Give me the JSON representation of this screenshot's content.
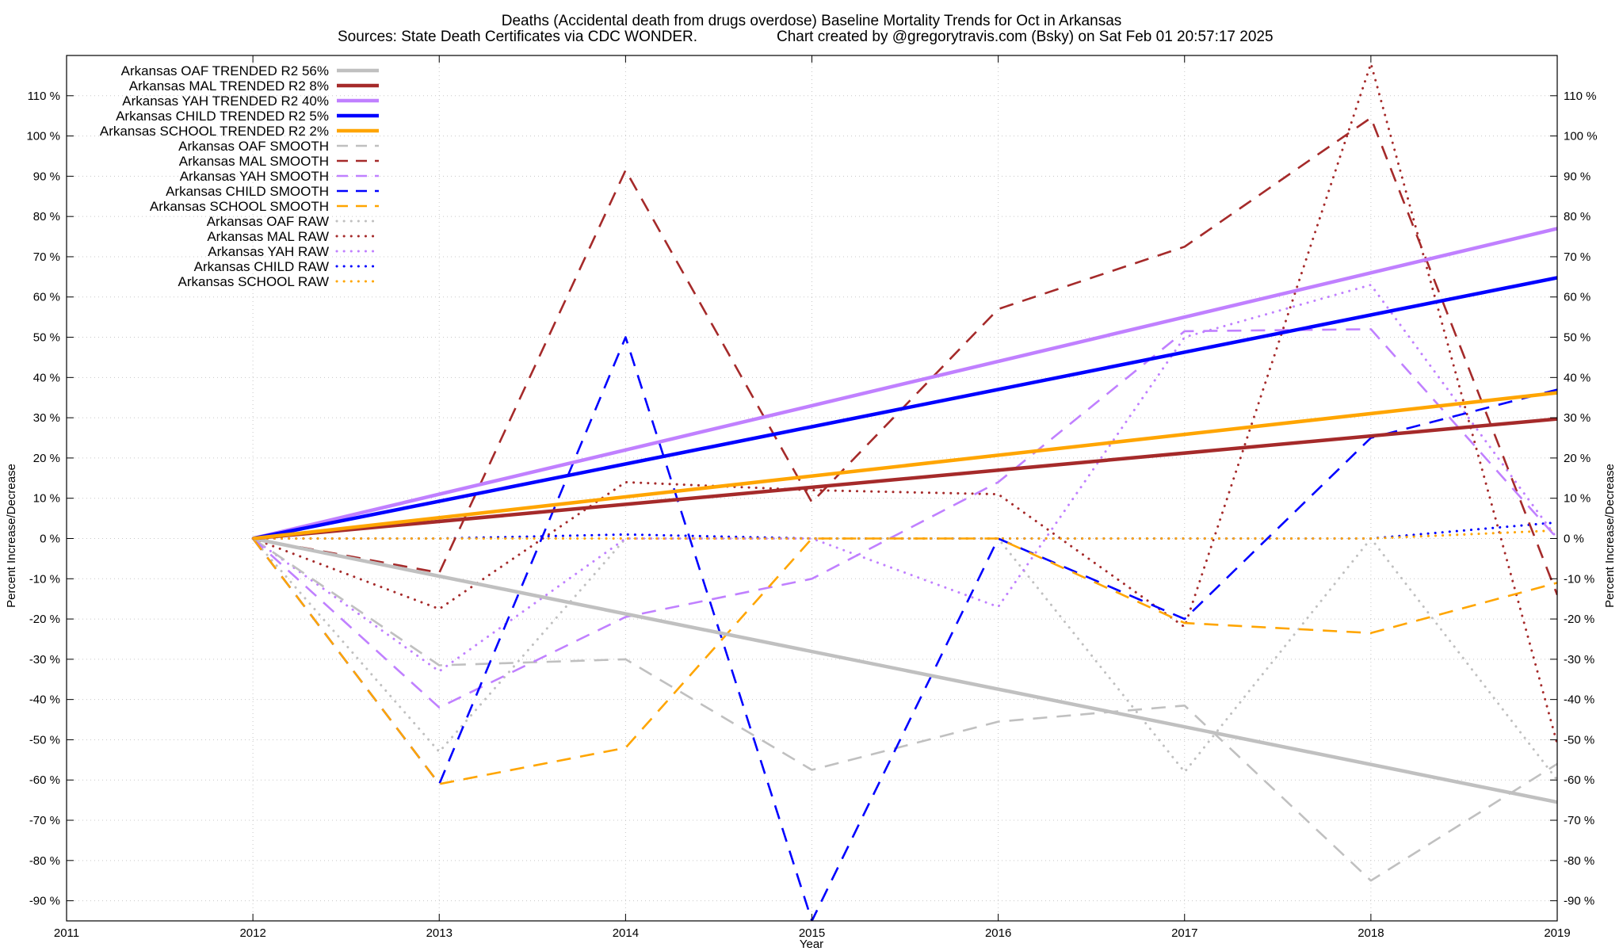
{
  "chart_data": {
    "type": "line",
    "title": "Deaths (Accidental death from drugs overdose)  Baseline Mortality Trends for Oct in Arkansas",
    "subtitle_left": "Sources: State Death Certificates via CDC WONDER.",
    "subtitle_right": "Chart created by @gregorytravis.com (Bsky) on Sat Feb 01 20:57:17 2025",
    "xlabel": "Year",
    "ylabel_left": "Percent Increase/Decrease",
    "ylabel_right": "Percent Increase/Decrease",
    "xlim": [
      2011,
      2019
    ],
    "ylim": [
      -95,
      120
    ],
    "x_ticks": [
      2011,
      2012,
      2013,
      2014,
      2015,
      2016,
      2017,
      2018,
      2019
    ],
    "y_ticks": [
      -90,
      -80,
      -70,
      -60,
      -50,
      -40,
      -30,
      -20,
      -10,
      0,
      10,
      20,
      30,
      40,
      50,
      60,
      70,
      80,
      90,
      100,
      110
    ],
    "y_tick_labels": [
      "-90 %",
      "-80 %",
      "-70 %",
      "-60 %",
      "-50 %",
      "-40 %",
      "-30 %",
      "-20 %",
      "-10 %",
      "0 %",
      "10 %",
      "20 %",
      "30 %",
      "40 %",
      "50 %",
      "60 %",
      "70 %",
      "80 %",
      "90 %",
      "100 %",
      "110 %"
    ],
    "grid": true,
    "legend_position": "top-left",
    "colors": {
      "OAF": "#c0c0c0",
      "MAL": "#a52a2a",
      "YAH": "#c080ff",
      "CHILD": "#0000ff",
      "SCHOOL": "#ffa500"
    },
    "series": [
      {
        "name": "Arkansas OAF TRENDED R2  56%",
        "key": "OAF",
        "style": "trend",
        "x": [
          2012,
          2019
        ],
        "y": [
          0,
          -65.5
        ]
      },
      {
        "name": "Arkansas MAL TRENDED R2  8%",
        "key": "MAL",
        "style": "trend",
        "x": [
          2012,
          2019
        ],
        "y": [
          0,
          29.7
        ]
      },
      {
        "name": "Arkansas YAH TRENDED R2  40%",
        "key": "YAH",
        "style": "trend",
        "x": [
          2012,
          2019
        ],
        "y": [
          0,
          77
        ]
      },
      {
        "name": "Arkansas CHILD TRENDED R2  5%",
        "key": "CHILD",
        "style": "trend",
        "x": [
          2012,
          2019
        ],
        "y": [
          0,
          64.8
        ]
      },
      {
        "name": "Arkansas SCHOOL TRENDED R2  2%",
        "key": "SCHOOL",
        "style": "trend",
        "x": [
          2012,
          2019
        ],
        "y": [
          0,
          36.2
        ]
      },
      {
        "name": "Arkansas OAF SMOOTH",
        "key": "OAF",
        "style": "smooth",
        "x": [
          2012,
          2013,
          2014,
          2015,
          2016,
          2017,
          2018,
          2019
        ],
        "y": [
          0,
          -31.5,
          -30,
          -57.5,
          -45.5,
          -41.5,
          -85,
          -56
        ]
      },
      {
        "name": "Arkansas MAL SMOOTH",
        "key": "MAL",
        "style": "smooth",
        "x": [
          2012,
          2013,
          2014,
          2015,
          2016,
          2017,
          2018,
          2019
        ],
        "y": [
          0,
          -8.5,
          91.5,
          9,
          57,
          72.5,
          104.5,
          -14
        ]
      },
      {
        "name": "Arkansas YAH SMOOTH",
        "key": "YAH",
        "style": "smooth",
        "x": [
          2012,
          2013,
          2014,
          2015,
          2016,
          2017,
          2018,
          2019
        ],
        "y": [
          0,
          -42,
          -19.5,
          -10,
          14,
          51.5,
          52,
          0
        ]
      },
      {
        "name": "Arkansas CHILD SMOOTH",
        "key": "CHILD",
        "style": "smooth",
        "x": [
          2012,
          2013,
          2014,
          2015,
          2016,
          2017,
          2018,
          2019
        ],
        "y": [
          0,
          -61,
          50,
          -95,
          0,
          -20,
          25,
          37
        ]
      },
      {
        "name": "Arkansas SCHOOL SMOOTH",
        "key": "SCHOOL",
        "style": "smooth",
        "x": [
          2012,
          2013,
          2014,
          2015,
          2016,
          2017,
          2018,
          2019
        ],
        "y": [
          0,
          -61,
          -52,
          0,
          0,
          -21,
          -23.5,
          -11
        ]
      },
      {
        "name": "Arkansas OAF RAW",
        "key": "OAF",
        "style": "raw",
        "x": [
          2012,
          2013,
          2014,
          2015,
          2016,
          2017,
          2018,
          2019
        ],
        "y": [
          0,
          -53,
          0,
          0,
          0,
          -58,
          0,
          -60
        ]
      },
      {
        "name": "Arkansas MAL RAW",
        "key": "MAL",
        "style": "raw",
        "x": [
          2012,
          2013,
          2014,
          2015,
          2016,
          2017,
          2018,
          2019
        ],
        "y": [
          0,
          -17.5,
          14,
          12,
          11,
          -22,
          118,
          -51
        ]
      },
      {
        "name": "Arkansas YAH RAW",
        "key": "YAH",
        "style": "raw",
        "x": [
          2012,
          2013,
          2014,
          2015,
          2016,
          2017,
          2018,
          2019
        ],
        "y": [
          0,
          -33,
          0,
          0,
          -17,
          50,
          63,
          0
        ]
      },
      {
        "name": "Arkansas CHILD RAW",
        "key": "CHILD",
        "style": "raw",
        "x": [
          2012,
          2013,
          2014,
          2015,
          2016,
          2017,
          2018,
          2019
        ],
        "y": [
          0,
          0,
          1,
          0,
          0,
          0,
          0,
          4
        ]
      },
      {
        "name": "Arkansas SCHOOL RAW",
        "key": "SCHOOL",
        "style": "raw",
        "x": [
          2012,
          2013,
          2014,
          2015,
          2016,
          2017,
          2018,
          2019
        ],
        "y": [
          0,
          0,
          0,
          0,
          0,
          0,
          0,
          2
        ]
      }
    ]
  }
}
